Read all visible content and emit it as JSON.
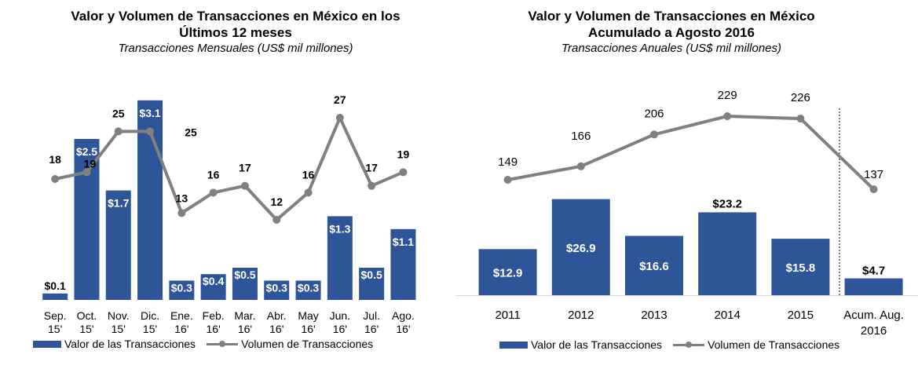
{
  "charts": {
    "left": {
      "title": "Valor y Volumen de Transacciones en México en los",
      "title2": "Últimos 12 meses",
      "subtitle": "Transacciones Mensuales (US$ mil millones)"
    },
    "right": {
      "title": "Valor y Volumen de Transacciones en México",
      "title2": "Acumulado a Agosto 2016",
      "subtitle": "Transacciones Anuales (US$ mil millones)"
    }
  },
  "legend": {
    "bar_label": "Valor de las Transacciones",
    "line_label": "Volumen de Transacciones"
  },
  "colors": {
    "bar": "#2e5597",
    "line": "#808080"
  },
  "chart_data": [
    {
      "type": "bar",
      "title": "Valor y Volumen de Transacciones en México en los Últimos 12 meses",
      "subtitle": "Transacciones Mensuales (US$ mil millones)",
      "categories": [
        [
          "Sep.",
          "15'"
        ],
        [
          "Oct.",
          "15'"
        ],
        [
          "Nov.",
          "15'"
        ],
        [
          "Dic.",
          "15'"
        ],
        [
          "Ene.",
          "16'"
        ],
        [
          "Feb.",
          "16'"
        ],
        [
          "Mar.",
          "16'"
        ],
        [
          "Abr.",
          "16'"
        ],
        [
          "May",
          "16'"
        ],
        [
          "Jun.",
          "16'"
        ],
        [
          "Jul.",
          "16'"
        ],
        [
          "Ago.",
          "16'"
        ]
      ],
      "series": [
        {
          "name": "Valor de las Transacciones",
          "type": "bar",
          "values": [
            0.1,
            2.5,
            1.7,
            3.1,
            0.3,
            0.4,
            0.5,
            0.3,
            0.3,
            1.3,
            0.5,
            1.1
          ],
          "labels": [
            "$0.1",
            "$2.5",
            "$1.7",
            "$3.1",
            "$0.3",
            "$0.4",
            "$0.5",
            "$0.3",
            "$0.3",
            "$1.3",
            "$0.5",
            "$1.1"
          ]
        },
        {
          "name": "Volumen de Transacciones",
          "type": "line",
          "values": [
            18,
            19,
            25,
            25,
            13,
            16,
            17,
            12,
            16,
            27,
            17,
            19
          ],
          "labels": [
            "18",
            "19",
            "25",
            "25",
            "13",
            "16",
            "17",
            "12",
            "16",
            "27",
            "17",
            "19"
          ]
        }
      ],
      "legend": "bottom"
    },
    {
      "type": "bar",
      "title": "Valor y Volumen de Transacciones en México Acumulado a Agosto 2016",
      "subtitle": "Transacciones Anuales (US$ mil millones)",
      "categories": [
        [
          "2011"
        ],
        [
          "2012"
        ],
        [
          "2013"
        ],
        [
          "2014"
        ],
        [
          "2015"
        ],
        [
          "Acum. Aug.",
          "2016"
        ]
      ],
      "series": [
        {
          "name": "Valor de las Transacciones",
          "type": "bar",
          "values": [
            12.9,
            26.9,
            16.6,
            23.2,
            15.8,
            4.7
          ],
          "labels": [
            "$12.9",
            "$26.9",
            "$16.6",
            "$23.2",
            "$15.8",
            "$4.7"
          ]
        },
        {
          "name": "Volumen de Transacciones",
          "type": "line",
          "values": [
            149,
            166,
            206,
            229,
            226,
            137
          ],
          "labels": [
            "149",
            "166",
            "206",
            "229",
            "226",
            "137"
          ]
        }
      ],
      "legend": "bottom"
    }
  ]
}
